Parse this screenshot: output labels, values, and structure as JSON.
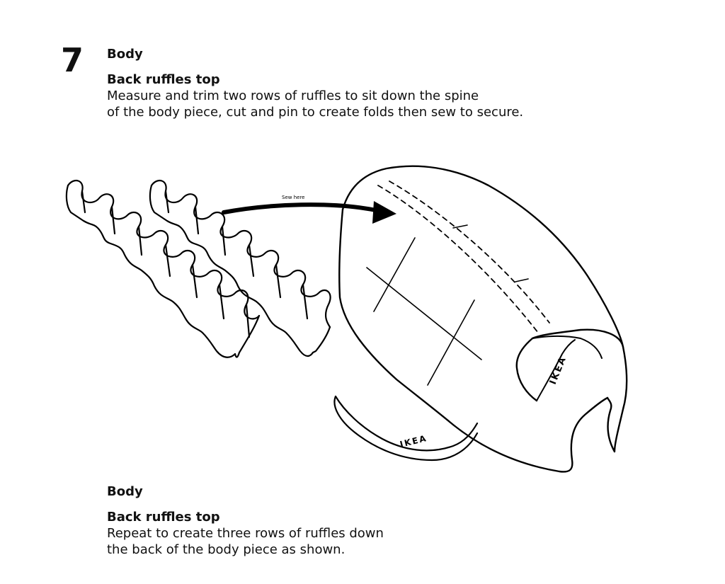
{
  "step": {
    "number": "7"
  },
  "top": {
    "section": "Body",
    "subsection": "Back ruffles top",
    "lines": [
      "Measure and trim two rows of ruffles to sit down the spine",
      "of the body piece, cut and pin to create folds then sew to secure."
    ]
  },
  "illustration": {
    "arrow_label": "Sew here",
    "brand_text_side": "IKEA",
    "brand_text_bottom": "IKEA"
  },
  "bottom": {
    "section": "Body",
    "subsection": "Back ruffles top",
    "lines": [
      "Repeat to create three rows of ruffles down",
      "the back of the body piece as shown."
    ]
  }
}
